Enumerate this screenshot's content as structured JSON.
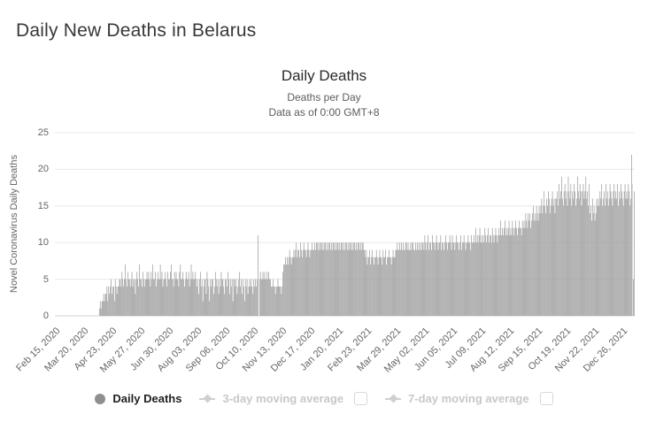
{
  "page": {
    "heading": "Daily New Deaths in Belarus"
  },
  "chart": {
    "title": "Daily Deaths",
    "subtitle1": "Deaths per Day",
    "subtitle2": "Data as of 0:00 GMT+8",
    "y_axis_title": "Novel Coronavirus Daily Deaths"
  },
  "legend": {
    "items": [
      {
        "label": "Daily Deaths",
        "marker": "circle",
        "active": true
      },
      {
        "label": "3-day moving average",
        "marker": "line-diamond",
        "active": false,
        "checkbox_checked": false
      },
      {
        "label": "7-day moving average",
        "marker": "line-diamond",
        "active": false,
        "checkbox_checked": false
      }
    ]
  },
  "colors": {
    "bar": "#9e9e9e",
    "light_bar": "#cfcfcf",
    "gridline": "#e8e8e8",
    "axis_line": "#d4d4d4",
    "disabled_legend": "#c8c8c8"
  },
  "chart_data": {
    "type": "bar",
    "title": "Daily Deaths",
    "subtitle": "Deaths per Day — Data as of 0:00 GMT+8",
    "ylabel": "Novel Coronavirus Daily Deaths",
    "series_name": "Daily Deaths",
    "x_start_date": "Feb 15, 2020",
    "x_tick_interval_days": 34,
    "x_tick_labels": [
      "Feb 15, 2020",
      "Mar 20, 2020",
      "Apr 23, 2020",
      "May 27, 2020",
      "Jun 30, 2020",
      "Aug 03, 2020",
      "Sep 06, 2020",
      "Oct 10, 2020",
      "Nov 13, 2020",
      "Dec 17, 2020",
      "Jan 20, 2021",
      "Feb 23, 2021",
      "Mar 29, 2021",
      "May 02, 2021",
      "Jun 05, 2021",
      "Jul 09, 2021",
      "Aug 12, 2021",
      "Sep 15, 2021",
      "Oct 19, 2021",
      "Nov 22, 2021",
      "Dec 26, 2021"
    ],
    "y_ticks": [
      0,
      5,
      10,
      15,
      20,
      25
    ],
    "ylim": [
      0,
      25
    ],
    "grid": "horizontal",
    "legend_position": "bottom",
    "light_bar_index": 692,
    "values": [
      0,
      0,
      0,
      0,
      0,
      0,
      0,
      0,
      0,
      0,
      0,
      0,
      0,
      0,
      0,
      0,
      0,
      0,
      0,
      0,
      0,
      0,
      0,
      0,
      0,
      0,
      0,
      0,
      0,
      0,
      0,
      0,
      0,
      0,
      0,
      0,
      0,
      0,
      0,
      0,
      0,
      0,
      0,
      0,
      0,
      0,
      0,
      0,
      0,
      0,
      0,
      0,
      0,
      1,
      2,
      1,
      2,
      2,
      3,
      2,
      3,
      3,
      4,
      2,
      4,
      3,
      4,
      5,
      3,
      4,
      4,
      2,
      5,
      4,
      3,
      4,
      4,
      5,
      5,
      4,
      6,
      5,
      4,
      5,
      7,
      5,
      4,
      6,
      5,
      5,
      4,
      5,
      6,
      4,
      5,
      5,
      3,
      5,
      6,
      5,
      4,
      7,
      5,
      5,
      4,
      6,
      5,
      4,
      5,
      5,
      6,
      5,
      6,
      5,
      4,
      6,
      5,
      7,
      5,
      5,
      6,
      4,
      5,
      6,
      5,
      5,
      7,
      5,
      6,
      4,
      5,
      5,
      6,
      5,
      4,
      6,
      5,
      5,
      6,
      7,
      5,
      5,
      4,
      6,
      5,
      6,
      5,
      5,
      4,
      6,
      7,
      5,
      5,
      6,
      5,
      4,
      5,
      6,
      5,
      5,
      6,
      4,
      5,
      7,
      5,
      6,
      5,
      5,
      6,
      5,
      4,
      5,
      3,
      5,
      6,
      4,
      5,
      2,
      4,
      5,
      5,
      3,
      6,
      5,
      4,
      2,
      5,
      4,
      5,
      5,
      3,
      4,
      6,
      5,
      4,
      5,
      3,
      5,
      4,
      6,
      5,
      5,
      4,
      3,
      5,
      5,
      4,
      6,
      5,
      3,
      5,
      4,
      5,
      2,
      5,
      5,
      4,
      5,
      3,
      4,
      5,
      6,
      4,
      5,
      3,
      5,
      4,
      2,
      5,
      4,
      5,
      3,
      4,
      5,
      4,
      5,
      4,
      3,
      5,
      4,
      5,
      4,
      5,
      11,
      0,
      5,
      6,
      5,
      5,
      6,
      5,
      6,
      5,
      5,
      6,
      5,
      6,
      5,
      5,
      4,
      4,
      5,
      4,
      4,
      3,
      4,
      4,
      5,
      4,
      4,
      4,
      3,
      4,
      6,
      7,
      7,
      8,
      7,
      8,
      7,
      8,
      9,
      8,
      7,
      8,
      8,
      9,
      8,
      9,
      10,
      8,
      9,
      9,
      8,
      10,
      9,
      8,
      9,
      10,
      9,
      9,
      8,
      9,
      10,
      9,
      8,
      9,
      9,
      10,
      9,
      9,
      10,
      9,
      10,
      10,
      9,
      10,
      9,
      10,
      10,
      9,
      10,
      9,
      10,
      10,
      9,
      10,
      9,
      10,
      10,
      9,
      10,
      9,
      10,
      10,
      9,
      10,
      9,
      10,
      10,
      9,
      10,
      9,
      10,
      10,
      9,
      10,
      9,
      10,
      10,
      9,
      10,
      9,
      10,
      10,
      9,
      10,
      9,
      10,
      10,
      9,
      10,
      9,
      10,
      10,
      9,
      10,
      9,
      10,
      10,
      9,
      9,
      8,
      9,
      7,
      8,
      8,
      9,
      7,
      8,
      9,
      8,
      7,
      8,
      8,
      9,
      8,
      7,
      8,
      9,
      8,
      8,
      7,
      9,
      8,
      8,
      9,
      7,
      8,
      8,
      9,
      8,
      8,
      7,
      8,
      9,
      8,
      8,
      9,
      9,
      10,
      9,
      9,
      10,
      9,
      10,
      9,
      10,
      9,
      9,
      10,
      10,
      9,
      10,
      9,
      9,
      10,
      9,
      10,
      10,
      9,
      9,
      10,
      9,
      10,
      9,
      10,
      9,
      10,
      9,
      10,
      10,
      9,
      11,
      10,
      9,
      10,
      11,
      9,
      10,
      10,
      9,
      11,
      10,
      10,
      9,
      10,
      11,
      10,
      9,
      10,
      10,
      11,
      9,
      10,
      10,
      9,
      10,
      11,
      10,
      9,
      10,
      10,
      11,
      10,
      9,
      11,
      10,
      10,
      9,
      10,
      11,
      10,
      10,
      9,
      10,
      11,
      9,
      10,
      10,
      11,
      10,
      9,
      10,
      10,
      11,
      10,
      10,
      9,
      11,
      10,
      10,
      11,
      10,
      12,
      10,
      11,
      10,
      11,
      12,
      10,
      11,
      10,
      11,
      10,
      12,
      11,
      10,
      11,
      12,
      10,
      11,
      11,
      10,
      12,
      11,
      10,
      11,
      12,
      11,
      10,
      11,
      12,
      11,
      13,
      11,
      12,
      11,
      12,
      13,
      11,
      12,
      11,
      12,
      13,
      11,
      12,
      11,
      13,
      12,
      11,
      12,
      13,
      12,
      11,
      12,
      13,
      12,
      12,
      11,
      13,
      12,
      13,
      12,
      14,
      13,
      12,
      14,
      13,
      14,
      12,
      13,
      14,
      15,
      13,
      14,
      13,
      15,
      14,
      13,
      15,
      14,
      15,
      16,
      14,
      15,
      17,
      15,
      14,
      16,
      15,
      17,
      16,
      14,
      15,
      16,
      17,
      15,
      16,
      14,
      16,
      16,
      17,
      15,
      18,
      16,
      17,
      19,
      16,
      15,
      17,
      18,
      16,
      17,
      15,
      19,
      17,
      16,
      18,
      15,
      17,
      16,
      18,
      17,
      15,
      16,
      19,
      17,
      16,
      18,
      17,
      15,
      17,
      18,
      16,
      17,
      19,
      16,
      17,
      15,
      18,
      14,
      15,
      13,
      16,
      14,
      15,
      13,
      14,
      16,
      15,
      16,
      15,
      17,
      16,
      18,
      15,
      16,
      17,
      15,
      18,
      16,
      17,
      15,
      16,
      18,
      17,
      16,
      15,
      17,
      18,
      16,
      17,
      16,
      18,
      15,
      17,
      16,
      18,
      17,
      16,
      15,
      17,
      18,
      16,
      17,
      16,
      18,
      17,
      15,
      16,
      22,
      18,
      5,
      17
    ]
  }
}
